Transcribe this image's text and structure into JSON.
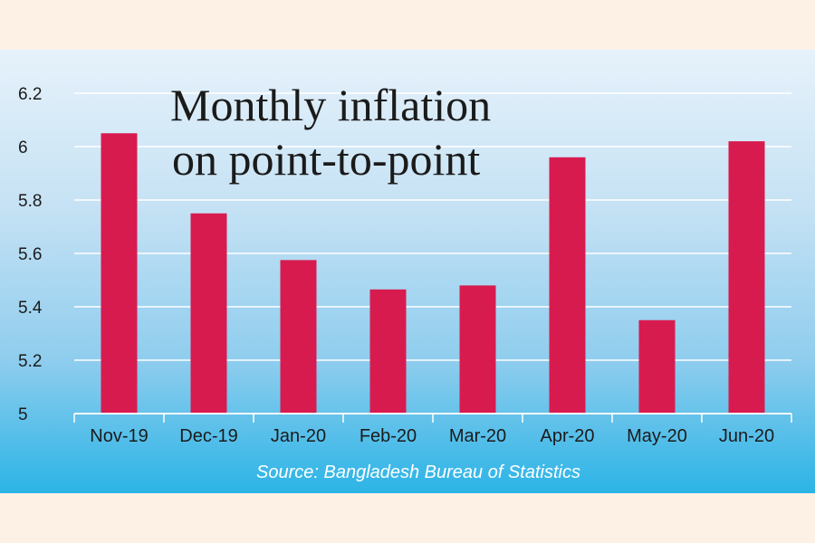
{
  "chart_data": {
    "type": "bar",
    "title_lines": [
      "Monthly inflation",
      "on point-to-point"
    ],
    "categories": [
      "Nov-19",
      "Dec-19",
      "Jan-20",
      "Feb-20",
      "Mar-20",
      "Apr-20",
      "May-20",
      "Jun-20"
    ],
    "values": [
      6.05,
      5.75,
      5.575,
      5.465,
      5.48,
      5.96,
      5.35,
      6.02
    ],
    "y_ticks": [
      "5",
      "5.2",
      "5.4",
      "5.6",
      "5.8",
      "6",
      "6.2"
    ],
    "ylim": [
      5,
      6.2
    ],
    "grid": true,
    "bar_color": "#d81b4f",
    "source": "Source: Bangladesh Bureau of Statistics"
  }
}
